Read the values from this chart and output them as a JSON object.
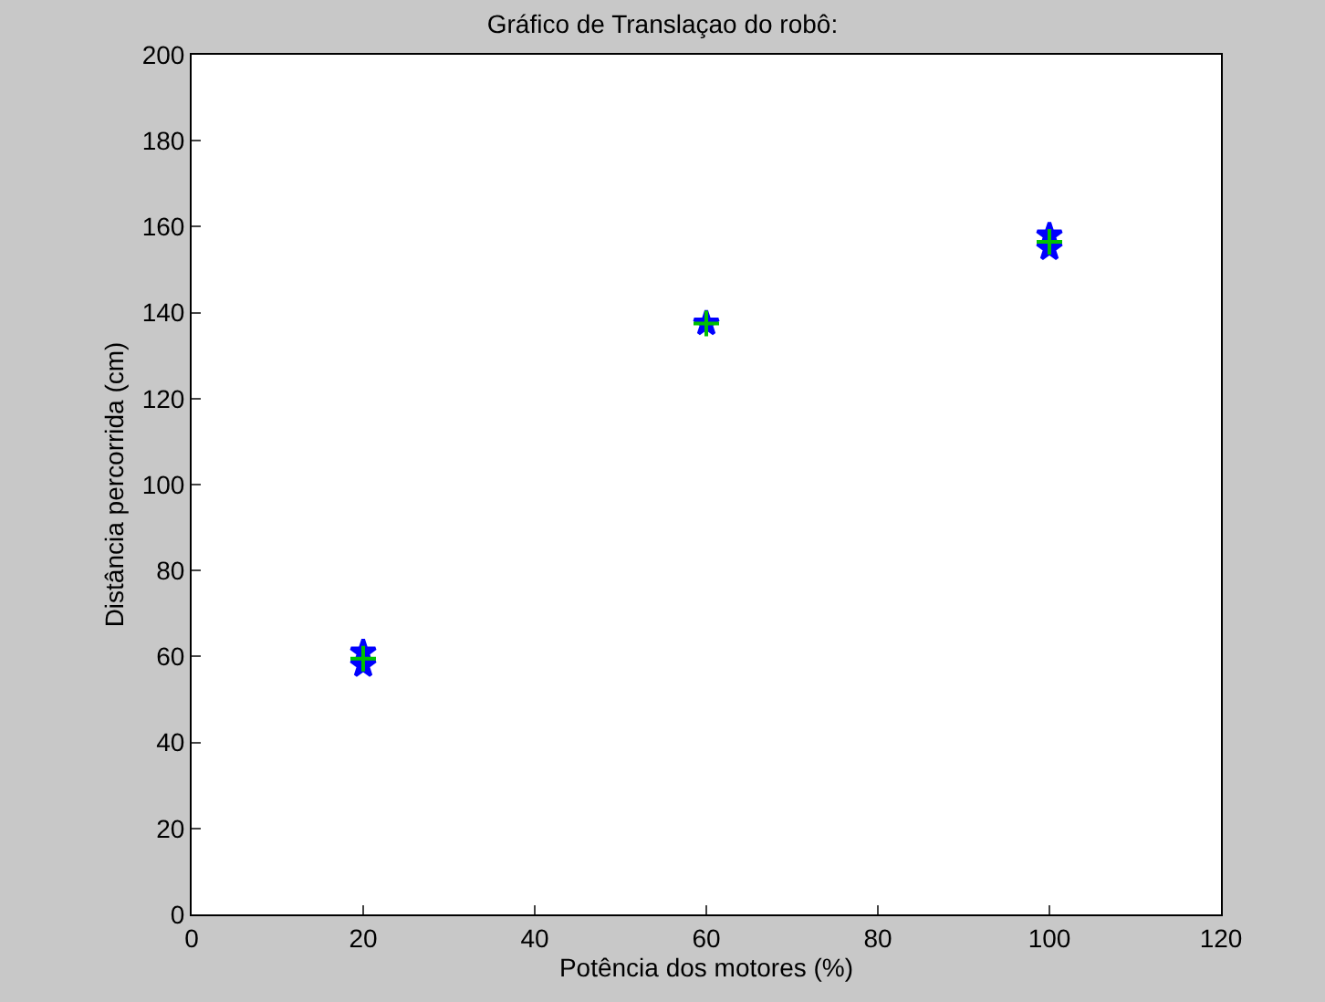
{
  "chart_data": {
    "type": "scatter",
    "title": "Gráfico de Translaçao do robô:",
    "xlabel": "Potência dos motores (%)",
    "ylabel": "Distância percorrida (cm)",
    "series": [
      {
        "color": "#0000ff",
        "marker": "star",
        "x": [
          20,
          20,
          60,
          100,
          100
        ],
        "values": [
          61,
          58,
          137.5,
          158,
          155
        ]
      },
      {
        "color": "#00c000",
        "marker": "cross",
        "x": [
          20,
          60,
          100
        ],
        "values": [
          59.5,
          137.5,
          156.5
        ]
      }
    ],
    "xlim": [
      0,
      120
    ],
    "xticks": [
      0,
      20,
      40,
      60,
      80,
      100,
      120
    ],
    "ylim": [
      0,
      200
    ],
    "yticks": [
      0,
      20,
      40,
      60,
      80,
      100,
      120,
      140,
      160,
      180,
      200
    ]
  }
}
